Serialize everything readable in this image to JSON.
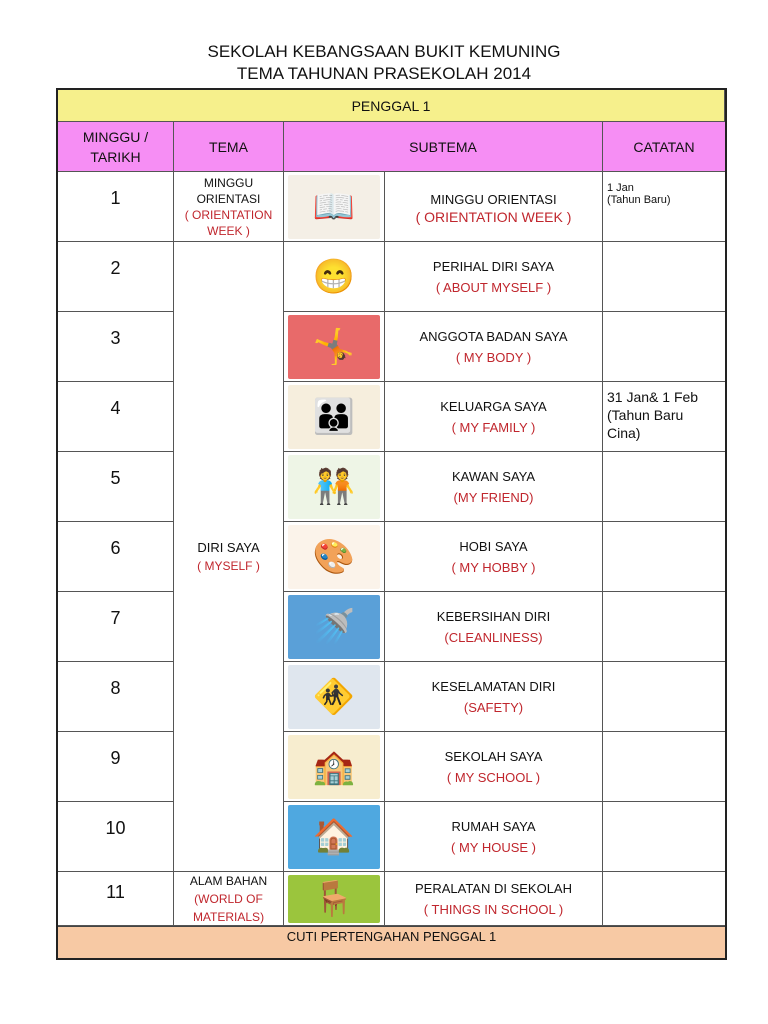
{
  "header": {
    "school": "SEKOLAH KEBANGSAAN BUKIT KEMUNING",
    "subtitle": "TEMA TAHUNAN PRASEKOLAH  2014"
  },
  "term": "PENGGAL 1",
  "columns": {
    "week": "MINGGU / TARIKH",
    "theme": "TEMA",
    "subtheme": "SUBTEMA",
    "notes": "CATATAN"
  },
  "themes": [
    {
      "name": "MINGGU ORIENTASI",
      "en": "( ORIENTATION WEEK )"
    },
    {
      "name": "DIRI SAYA",
      "en": "( MYSELF )"
    },
    {
      "name": "ALAM BAHAN",
      "en": "(WORLD OF MATERIALS)"
    }
  ],
  "rows": [
    {
      "week": "1",
      "sub": "MINGGU ORIENTASI",
      "en": "( ORIENTATION WEEK )",
      "note": "1 Jan\n(Tahun Baru)",
      "icon": "teacher-reading-icon",
      "glyph": "📖",
      "bg": "#f4efe6"
    },
    {
      "week": "2",
      "sub": "PERIHAL DIRI SAYA",
      "en": "( ABOUT MYSELF )",
      "note": "",
      "icon": "smiling-face-icon",
      "glyph": "😁",
      "bg": "#ffffff"
    },
    {
      "week": "3",
      "sub": "ANGGOTA BADAN SAYA",
      "en": "( MY BODY )",
      "note": "",
      "icon": "body-parts-icon",
      "glyph": "🤸",
      "bg": "#e86a6a"
    },
    {
      "week": "4",
      "sub": "KELUARGA SAYA",
      "en": "( MY FAMILY )",
      "note": "31 Jan& 1 Feb\n(Tahun Baru\nCina)",
      "icon": "family-icon",
      "glyph": "👪",
      "bg": "#f6eedd"
    },
    {
      "week": "5",
      "sub": "KAWAN SAYA",
      "en": "(MY FRIEND)",
      "note": "",
      "icon": "friends-icon",
      "glyph": "🧑‍🤝‍🧑",
      "bg": "#eef5e6"
    },
    {
      "week": "6",
      "sub": "HOBI SAYA",
      "en": "( MY HOBBY )",
      "note": "",
      "icon": "painting-hobby-icon",
      "glyph": "🎨",
      "bg": "#fbf3ea"
    },
    {
      "week": "7",
      "sub": "KEBERSIHAN DIRI",
      "en": "(CLEANLINESS)",
      "note": "",
      "icon": "shower-icon",
      "glyph": "🚿",
      "bg": "#5aa0d8"
    },
    {
      "week": "8",
      "sub": "KESELAMATAN DIRI",
      "en": "(SAFETY)",
      "note": "",
      "icon": "road-crossing-icon",
      "glyph": "🚸",
      "bg": "#dfe6ee"
    },
    {
      "week": "9",
      "sub": "SEKOLAH SAYA",
      "en": "( MY SCHOOL )",
      "note": "",
      "icon": "school-building-icon",
      "glyph": "🏫",
      "bg": "#f7edcf"
    },
    {
      "week": "10",
      "sub": "RUMAH SAYA",
      "en": "( MY HOUSE )",
      "note": "",
      "icon": "house-icon",
      "glyph": "🏠",
      "bg": "#4fa8e0"
    },
    {
      "week": "11",
      "sub": "PERALATAN DI SEKOLAH",
      "en": "( THINGS IN SCHOOL )",
      "note": "",
      "icon": "classroom-icon",
      "glyph": "🪑",
      "bg": "#9bc53d"
    }
  ],
  "footer": "CUTI PERTENGAHAN PENGGAL 1",
  "colors": {
    "term_bg": "#f6f08c",
    "header_bg": "#f68ef4",
    "footer_bg": "#f7c9a4",
    "english_text": "#c0262d"
  }
}
